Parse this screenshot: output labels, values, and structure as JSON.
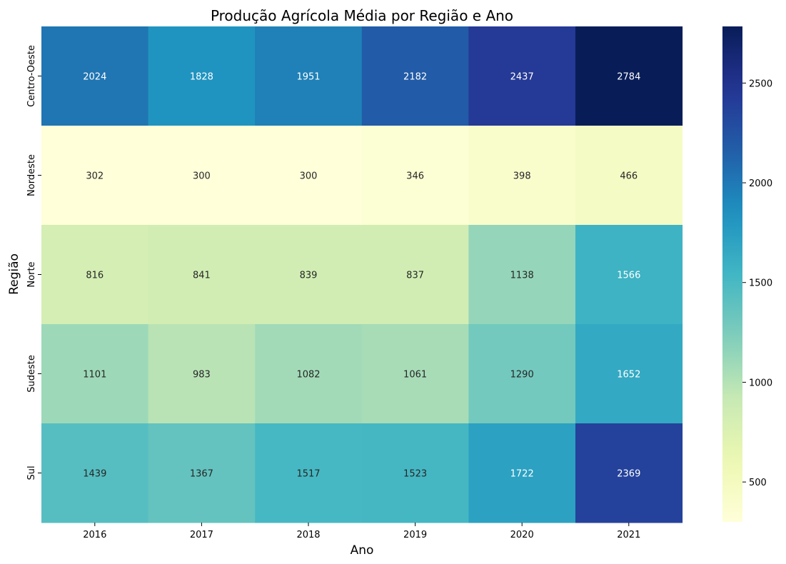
{
  "chart_data": {
    "type": "heatmap",
    "title": "Produção Agrícola Média por Região e Ano",
    "xlabel": "Ano",
    "ylabel": "Região",
    "x_categories": [
      "2016",
      "2017",
      "2018",
      "2019",
      "2020",
      "2021"
    ],
    "y_categories": [
      "Centro-Oeste",
      "Nordeste",
      "Norte",
      "Sudeste",
      "Sul"
    ],
    "values": [
      [
        2024,
        1828,
        1951,
        2182,
        2437,
        2784
      ],
      [
        302,
        300,
        300,
        346,
        398,
        466
      ],
      [
        816,
        841,
        839,
        837,
        1138,
        1566
      ],
      [
        1101,
        983,
        1082,
        1061,
        1290,
        1652
      ],
      [
        1439,
        1367,
        1517,
        1523,
        1722,
        2369
      ]
    ],
    "colormap": "YlGnBu",
    "color_range": [
      300,
      2784
    ],
    "colorbar_ticks": [
      500,
      1000,
      1500,
      2000,
      2500
    ],
    "annotations": true,
    "grid": false
  }
}
